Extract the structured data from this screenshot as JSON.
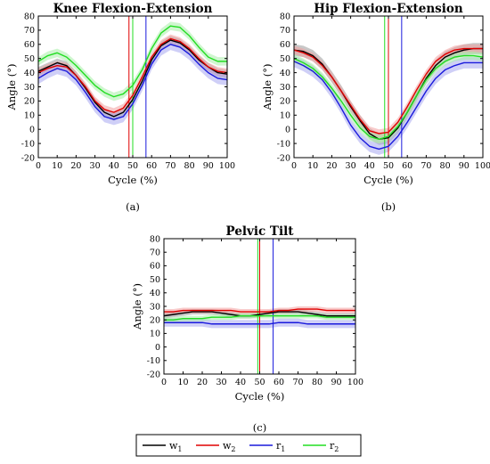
{
  "chart_data": [
    {
      "type": "line",
      "title": "Knee Flexion-Extension",
      "xlabel": "Cycle (%)",
      "ylabel": "Angle (°)",
      "caption": "(a)",
      "xlim": [
        0,
        100
      ],
      "ylim": [
        -20,
        80
      ],
      "x_ticks": [
        0,
        10,
        20,
        30,
        40,
        50,
        60,
        70,
        80,
        90,
        100
      ],
      "y_ticks": [
        -20,
        -10,
        0,
        10,
        20,
        30,
        40,
        50,
        60,
        70,
        80
      ],
      "grid": false,
      "series": [
        {
          "name": "w1",
          "color": "#000000",
          "band_color": "#9a9a9a",
          "band": 3,
          "x": [
            0,
            5,
            10,
            15,
            20,
            25,
            30,
            35,
            40,
            45,
            50,
            55,
            60,
            65,
            70,
            75,
            80,
            85,
            90,
            95,
            100
          ],
          "y": [
            41,
            44,
            47,
            45,
            38,
            29,
            19,
            12,
            9,
            12,
            21,
            34,
            49,
            59,
            63,
            61,
            56,
            49,
            44,
            40,
            39
          ]
        },
        {
          "name": "w2",
          "color": "#e00000",
          "band_color": "#f2a0a0",
          "band": 3,
          "x": [
            0,
            5,
            10,
            15,
            20,
            25,
            30,
            35,
            40,
            45,
            50,
            55,
            60,
            65,
            70,
            75,
            80,
            85,
            90,
            95,
            100
          ],
          "y": [
            40,
            43,
            45,
            44,
            38,
            30,
            20,
            14,
            12,
            15,
            24,
            37,
            51,
            60,
            64,
            62,
            57,
            50,
            44,
            41,
            40
          ]
        },
        {
          "name": "r1",
          "color": "#1a1adc",
          "band_color": "#a8a8f0",
          "band": 4,
          "x": [
            0,
            5,
            10,
            15,
            20,
            25,
            30,
            35,
            40,
            45,
            50,
            55,
            60,
            65,
            70,
            75,
            80,
            85,
            90,
            95,
            100
          ],
          "y": [
            36,
            40,
            43,
            41,
            35,
            26,
            16,
            9,
            7,
            9,
            18,
            31,
            46,
            56,
            60,
            58,
            53,
            46,
            40,
            36,
            35
          ]
        },
        {
          "name": "r2",
          "color": "#22dd22",
          "band_color": "#a8eea8",
          "band": 3,
          "x": [
            0,
            5,
            10,
            15,
            20,
            25,
            30,
            35,
            40,
            45,
            50,
            55,
            60,
            65,
            70,
            75,
            80,
            85,
            90,
            95,
            100
          ],
          "y": [
            48,
            52,
            54,
            51,
            45,
            38,
            31,
            26,
            23,
            25,
            31,
            42,
            57,
            68,
            73,
            72,
            66,
            58,
            51,
            48,
            48
          ]
        }
      ],
      "vlines": [
        {
          "x": 48,
          "color": "#e00000"
        },
        {
          "x": 50,
          "color": "#22dd22"
        },
        {
          "x": 57,
          "color": "#1a1adc"
        }
      ]
    },
    {
      "type": "line",
      "title": "Hip Flexion-Extension",
      "xlabel": "Cycle (%)",
      "ylabel": "Angle (°)",
      "caption": "(b)",
      "xlim": [
        0,
        100
      ],
      "ylim": [
        -20,
        80
      ],
      "x_ticks": [
        0,
        10,
        20,
        30,
        40,
        50,
        60,
        70,
        80,
        90,
        100
      ],
      "y_ticks": [
        -20,
        -10,
        0,
        10,
        20,
        30,
        40,
        50,
        60,
        70,
        80
      ],
      "grid": false,
      "series": [
        {
          "name": "w1",
          "color": "#000000",
          "band_color": "#9a9a9a",
          "band": 4,
          "x": [
            0,
            5,
            10,
            15,
            20,
            25,
            30,
            35,
            40,
            45,
            50,
            55,
            60,
            65,
            70,
            75,
            80,
            85,
            90,
            95,
            100
          ],
          "y": [
            56,
            55,
            52,
            46,
            37,
            27,
            16,
            6,
            -3,
            -7,
            -6,
            1,
            12,
            24,
            36,
            45,
            51,
            54,
            56,
            57,
            57
          ]
        },
        {
          "name": "w2",
          "color": "#e00000",
          "band_color": "#f2a0a0",
          "band": 3,
          "x": [
            0,
            5,
            10,
            15,
            20,
            25,
            30,
            35,
            40,
            45,
            50,
            55,
            60,
            65,
            70,
            75,
            80,
            85,
            90,
            95,
            100
          ],
          "y": [
            56,
            54,
            51,
            45,
            37,
            27,
            17,
            7,
            -1,
            -3,
            -2,
            5,
            16,
            28,
            39,
            48,
            53,
            56,
            57,
            57,
            57
          ]
        },
        {
          "name": "r1",
          "color": "#1a1adc",
          "band_color": "#a8a8f0",
          "band": 4,
          "x": [
            0,
            5,
            10,
            15,
            20,
            25,
            30,
            35,
            40,
            45,
            50,
            55,
            60,
            65,
            70,
            75,
            80,
            85,
            90,
            95,
            100
          ],
          "y": [
            48,
            45,
            41,
            35,
            26,
            15,
            3,
            -6,
            -12,
            -14,
            -12,
            -5,
            5,
            16,
            27,
            36,
            42,
            45,
            47,
            47,
            47
          ]
        },
        {
          "name": "r2",
          "color": "#22dd22",
          "band_color": "#a8eea8",
          "band": 3,
          "x": [
            0,
            5,
            10,
            15,
            20,
            25,
            30,
            35,
            40,
            45,
            50,
            55,
            60,
            65,
            70,
            75,
            80,
            85,
            90,
            95,
            100
          ],
          "y": [
            50,
            47,
            43,
            37,
            29,
            20,
            10,
            1,
            -5,
            -7,
            -5,
            2,
            12,
            24,
            35,
            43,
            48,
            51,
            52,
            52,
            51
          ]
        }
      ],
      "vlines": [
        {
          "x": 48,
          "color": "#22dd22"
        },
        {
          "x": 50,
          "color": "#e00000"
        },
        {
          "x": 57,
          "color": "#1a1adc"
        }
      ]
    },
    {
      "type": "line",
      "title": "Pelvic Tilt",
      "xlabel": "Cycle (%)",
      "ylabel": "Angle (°)",
      "caption": "(c)",
      "xlim": [
        0,
        100
      ],
      "ylim": [
        -20,
        80
      ],
      "x_ticks": [
        0,
        10,
        20,
        30,
        40,
        50,
        60,
        70,
        80,
        90,
        100
      ],
      "y_ticks": [
        -20,
        -10,
        0,
        10,
        20,
        30,
        40,
        50,
        60,
        70,
        80
      ],
      "grid": false,
      "series": [
        {
          "name": "w1",
          "color": "#000000",
          "band_color": "#9a9a9a",
          "band": 2,
          "x": [
            0,
            5,
            10,
            15,
            20,
            25,
            30,
            35,
            40,
            45,
            50,
            55,
            60,
            65,
            70,
            75,
            80,
            85,
            90,
            95,
            100
          ],
          "y": [
            23,
            24,
            25,
            26,
            26,
            26,
            25,
            24,
            23,
            23,
            24,
            25,
            26,
            26,
            26,
            25,
            24,
            23,
            23,
            23,
            23
          ]
        },
        {
          "name": "w2",
          "color": "#e00000",
          "band_color": "#f2a0a0",
          "band": 2,
          "x": [
            0,
            5,
            10,
            15,
            20,
            25,
            30,
            35,
            40,
            45,
            50,
            55,
            60,
            65,
            70,
            75,
            80,
            85,
            90,
            95,
            100
          ],
          "y": [
            26,
            26,
            27,
            27,
            27,
            27,
            27,
            27,
            26,
            26,
            26,
            26,
            27,
            27,
            28,
            28,
            28,
            27,
            27,
            27,
            27
          ]
        },
        {
          "name": "r1",
          "color": "#1a1adc",
          "band_color": "#a8a8f0",
          "band": 3,
          "x": [
            0,
            5,
            10,
            15,
            20,
            25,
            30,
            35,
            40,
            45,
            50,
            55,
            60,
            65,
            70,
            75,
            80,
            85,
            90,
            95,
            100
          ],
          "y": [
            18,
            18,
            18,
            18,
            18,
            17,
            17,
            17,
            17,
            17,
            17,
            17,
            18,
            18,
            18,
            17,
            17,
            17,
            17,
            17,
            17
          ]
        },
        {
          "name": "r2",
          "color": "#22dd22",
          "band_color": "#a8eea8",
          "band": 2,
          "x": [
            0,
            5,
            10,
            15,
            20,
            25,
            30,
            35,
            40,
            45,
            50,
            55,
            60,
            65,
            70,
            75,
            80,
            85,
            90,
            95,
            100
          ],
          "y": [
            20,
            20,
            21,
            21,
            21,
            22,
            22,
            22,
            23,
            23,
            23,
            23,
            23,
            23,
            23,
            23,
            23,
            22,
            22,
            22,
            22
          ]
        }
      ],
      "vlines": [
        {
          "x": 49,
          "color": "#22dd22"
        },
        {
          "x": 50,
          "color": "#e00000"
        },
        {
          "x": 57,
          "color": "#1a1adc"
        }
      ]
    }
  ],
  "legend": {
    "items": [
      {
        "label": "w",
        "sub": "1",
        "color": "#000000"
      },
      {
        "label": "w",
        "sub": "2",
        "color": "#e00000"
      },
      {
        "label": "r",
        "sub": "1",
        "color": "#1a1adc"
      },
      {
        "label": "r",
        "sub": "2",
        "color": "#22dd22"
      }
    ]
  }
}
